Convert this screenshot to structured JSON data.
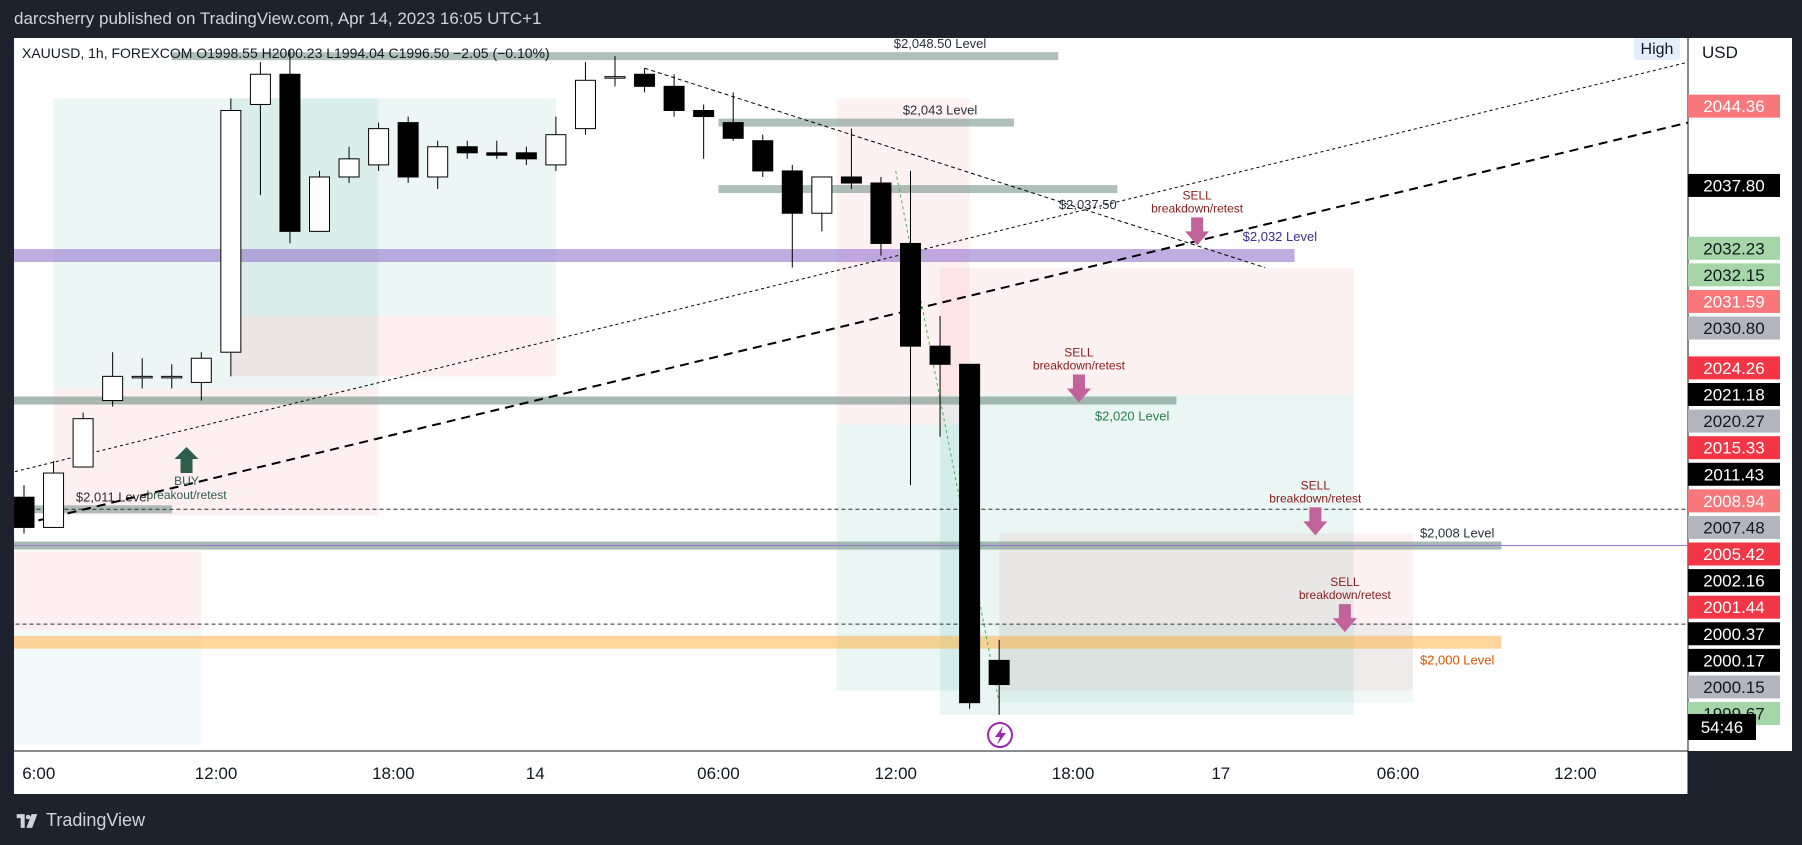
{
  "header": {
    "published_by": "darcsherry published on TradingView.com, Apr 14, 2023 16:05 UTC+1"
  },
  "legend": {
    "text": "XAUUSD, 1h, FOREXCOM  O1998.55  H2000.23  L1994.04  C1996.50  −2.05 (−0.10%)"
  },
  "high_badge": "High",
  "currency": "USD",
  "footer": {
    "brand": "TradingView"
  },
  "countdown": "54:46",
  "colors": {
    "bg": "#ffffff",
    "frame": "#1e222d",
    "bear": "#000000",
    "bull": "#ffffff"
  },
  "chart_data": {
    "type": "candlestick",
    "symbol": "XAUUSD",
    "interval": "1h",
    "ylim": [
      1991,
      2050
    ],
    "x_ticks": [
      {
        "label": "6:00",
        "i": 0.5
      },
      {
        "label": "12:00",
        "i": 6.5
      },
      {
        "label": "18:00",
        "i": 12.5
      },
      {
        "label": "14",
        "i": 17.3
      },
      {
        "label": "06:00",
        "i": 23.5
      },
      {
        "label": "12:00",
        "i": 29.5
      },
      {
        "label": "18:00",
        "i": 35.5
      },
      {
        "label": "17",
        "i": 40.5
      },
      {
        "label": "06:00",
        "i": 46.5
      },
      {
        "label": "12:00",
        "i": 52.5
      }
    ],
    "candles": [
      {
        "o": 2012.0,
        "h": 2013.0,
        "l": 2009.0,
        "c": 2009.5
      },
      {
        "o": 2009.5,
        "h": 2015.0,
        "l": 2009.5,
        "c": 2014.0
      },
      {
        "o": 2014.5,
        "h": 2019.0,
        "l": 2014.5,
        "c": 2018.5
      },
      {
        "o": 2020.0,
        "h": 2024.0,
        "l": 2019.5,
        "c": 2022.0
      },
      {
        "o": 2022.0,
        "h": 2023.5,
        "l": 2021.0,
        "c": 2022.0
      },
      {
        "o": 2022.0,
        "h": 2023.0,
        "l": 2021.0,
        "c": 2022.0
      },
      {
        "o": 2021.5,
        "h": 2024.0,
        "l": 2020.0,
        "c": 2023.5
      },
      {
        "o": 2024.0,
        "h": 2045.0,
        "l": 2022.0,
        "c": 2044.0
      },
      {
        "o": 2044.5,
        "h": 2048.0,
        "l": 2037.0,
        "c": 2047.0
      },
      {
        "o": 2047.0,
        "h": 2049.0,
        "l": 2033.0,
        "c": 2034.0
      },
      {
        "o": 2034.0,
        "h": 2039.0,
        "l": 2034.0,
        "c": 2038.5
      },
      {
        "o": 2038.5,
        "h": 2041.0,
        "l": 2038.0,
        "c": 2040.0
      },
      {
        "o": 2039.5,
        "h": 2043.0,
        "l": 2039.0,
        "c": 2042.5
      },
      {
        "o": 2043.0,
        "h": 2043.5,
        "l": 2038.0,
        "c": 2038.5
      },
      {
        "o": 2038.5,
        "h": 2041.5,
        "l": 2037.5,
        "c": 2041.0
      },
      {
        "o": 2041.0,
        "h": 2041.5,
        "l": 2040.0,
        "c": 2040.5
      },
      {
        "o": 2040.5,
        "h": 2041.5,
        "l": 2040.0,
        "c": 2040.3
      },
      {
        "o": 2040.5,
        "h": 2041.0,
        "l": 2039.5,
        "c": 2040.0
      },
      {
        "o": 2039.5,
        "h": 2043.5,
        "l": 2039.0,
        "c": 2042.0
      },
      {
        "o": 2042.5,
        "h": 2048.0,
        "l": 2042.0,
        "c": 2046.5
      },
      {
        "o": 2046.7,
        "h": 2048.5,
        "l": 2046.0,
        "c": 2046.8
      },
      {
        "o": 2047.0,
        "h": 2047.5,
        "l": 2045.5,
        "c": 2046.0
      },
      {
        "o": 2046.0,
        "h": 2047.0,
        "l": 2043.5,
        "c": 2044.0
      },
      {
        "o": 2044.0,
        "h": 2044.5,
        "l": 2040.0,
        "c": 2043.5
      },
      {
        "o": 2043.0,
        "h": 2045.5,
        "l": 2041.5,
        "c": 2041.7
      },
      {
        "o": 2041.5,
        "h": 2042.0,
        "l": 2038.5,
        "c": 2039.0
      },
      {
        "o": 2039.0,
        "h": 2039.5,
        "l": 2031.0,
        "c": 2035.5
      },
      {
        "o": 2035.5,
        "h": 2038.5,
        "l": 2034.0,
        "c": 2038.5
      },
      {
        "o": 2038.5,
        "h": 2042.5,
        "l": 2037.5,
        "c": 2038.0
      },
      {
        "o": 2038.0,
        "h": 2038.5,
        "l": 2032.0,
        "c": 2033.0
      },
      {
        "o": 2033.0,
        "h": 2039.0,
        "l": 2013.0,
        "c": 2024.5
      },
      {
        "o": 2024.5,
        "h": 2027.0,
        "l": 2017.0,
        "c": 2023.0
      },
      {
        "o": 2023.0,
        "h": 2023.0,
        "l": 1994.5,
        "c": 1995.0
      },
      {
        "o": 1998.5,
        "h": 2000.2,
        "l": 1994.0,
        "c": 1996.5
      }
    ]
  },
  "levels": [
    {
      "label": "$2,048.50 Level",
      "price": 2048.5
    },
    {
      "label": "$2,043 Level",
      "price": 2043.0
    },
    {
      "label": "$2,037.50",
      "price": 2037.5
    },
    {
      "label": "$2,032 Level",
      "price": 2032.0
    },
    {
      "label": "$2,020 Level",
      "price": 2020.0
    },
    {
      "label": "$2,011 Level",
      "price": 2011.0
    },
    {
      "label": "$2,008 Level",
      "price": 2008.0
    },
    {
      "label": "$2,000 Level",
      "price": 2000.0
    }
  ],
  "signals": [
    {
      "action": "BUY",
      "note": "breakout/retest",
      "dir": "up",
      "i": 5.5,
      "price": 2015.0
    },
    {
      "action": "SELL",
      "note": "breakdown/retest",
      "dir": "down",
      "i": 35.7,
      "price": 2021.0
    },
    {
      "action": "SELL",
      "note": "breakdown/retest",
      "dir": "down",
      "i": 39.7,
      "price": 2034.0
    },
    {
      "action": "SELL",
      "note": "breakdown/retest",
      "dir": "down",
      "i": 43.7,
      "price": 2010.0
    },
    {
      "action": "SELL",
      "note": "breakdown/retest",
      "dir": "down",
      "i": 44.7,
      "price": 2002.0
    }
  ],
  "price_tags": [
    {
      "text": "2044.36",
      "price": 2044.36,
      "bg": "#f7777a",
      "fg": "#ffffff"
    },
    {
      "text": "2037.80",
      "price": 2037.8,
      "bg": "#000000",
      "fg": "#ffffff"
    },
    {
      "text": "2032.23",
      "price": 2032.6,
      "bg": "#a5d6a7",
      "fg": "#131722"
    },
    {
      "text": "2032.15",
      "price": 2030.4,
      "bg": "#a5d6a7",
      "fg": "#131722"
    },
    {
      "text": "2031.59",
      "price": 2028.2,
      "bg": "#f7777a",
      "fg": "#ffffff"
    },
    {
      "text": "2030.80",
      "price": 2026.0,
      "bg": "#b2b5be",
      "fg": "#131722"
    },
    {
      "text": "2024.26",
      "price": 2022.7,
      "bg": "#f23645",
      "fg": "#ffffff"
    },
    {
      "text": "2021.18",
      "price": 2020.5,
      "bg": "#000000",
      "fg": "#ffffff"
    },
    {
      "text": "2020.27",
      "price": 2018.3,
      "bg": "#b2b5be",
      "fg": "#131722"
    },
    {
      "text": "2015.33",
      "price": 2016.1,
      "bg": "#f23645",
      "fg": "#ffffff"
    },
    {
      "text": "2011.43",
      "price": 2013.9,
      "bg": "#000000",
      "fg": "#ffffff"
    },
    {
      "text": "2008.94",
      "price": 2011.7,
      "bg": "#f7777a",
      "fg": "#ffffff"
    },
    {
      "text": "2007.48",
      "price": 2009.5,
      "bg": "#b2b5be",
      "fg": "#131722"
    },
    {
      "text": "2005.42",
      "price": 2007.3,
      "bg": "#f23645",
      "fg": "#ffffff"
    },
    {
      "text": "2002.16",
      "price": 2005.1,
      "bg": "#000000",
      "fg": "#ffffff"
    },
    {
      "text": "2001.44",
      "price": 2002.9,
      "bg": "#f23645",
      "fg": "#ffffff"
    },
    {
      "text": "2000.37",
      "price": 2000.7,
      "bg": "#000000",
      "fg": "#ffffff"
    },
    {
      "text": "2000.17",
      "price": 1998.5,
      "bg": "#000000",
      "fg": "#ffffff"
    },
    {
      "text": "2000.15",
      "price": 1996.3,
      "bg": "#b2b5be",
      "fg": "#131722"
    },
    {
      "text": "1999.67",
      "price": 1994.1,
      "bg": "#a5d6a7",
      "fg": "#131722"
    }
  ]
}
